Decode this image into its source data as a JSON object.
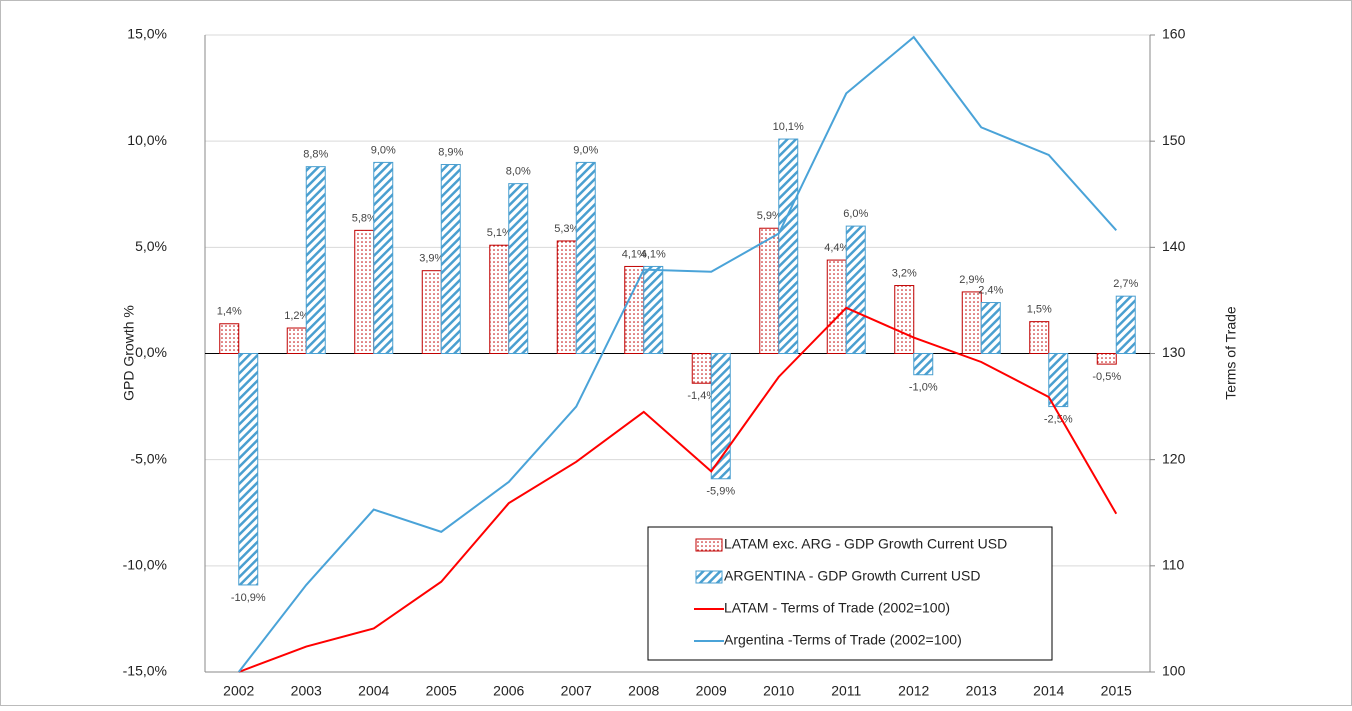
{
  "chart_data": {
    "type": "bar_line",
    "categories": [
      "2002",
      "2003",
      "2004",
      "2005",
      "2006",
      "2007",
      "2008",
      "2009",
      "2010",
      "2011",
      "2012",
      "2013",
      "2014",
      "2015"
    ],
    "ylabel": "GPD Growth %",
    "y2label": "Terms of Trade",
    "ylim": [
      -15,
      15
    ],
    "yticks": [
      {
        "value": -15,
        "label": "-15,0%"
      },
      {
        "value": -10,
        "label": "-10,0%"
      },
      {
        "value": -5,
        "label": "-5,0%"
      },
      {
        "value": 0,
        "label": "0,0%"
      },
      {
        "value": 5,
        "label": "5,0%"
      },
      {
        "value": 10,
        "label": "10,0%"
      },
      {
        "value": 15,
        "label": "15,0%"
      }
    ],
    "y2lim": [
      100,
      160
    ],
    "y2ticks": [
      100,
      110,
      120,
      130,
      140,
      150,
      160
    ],
    "grid": true,
    "legend": "lower right",
    "series": [
      {
        "name": "LATAM exc. ARG - GDP Growth Current USD",
        "type": "bar",
        "color": "#c00000",
        "values": [
          1.4,
          1.2,
          5.8,
          3.9,
          5.1,
          5.3,
          4.1,
          -1.4,
          5.9,
          4.4,
          3.2,
          2.9,
          1.5,
          -0.5
        ],
        "value_labels": [
          "1,4%",
          "1,2%",
          "5,8%",
          "3,9%",
          "5,1%",
          "5,3%",
          "4,1%",
          "-1,4%",
          "5,9%",
          "4,4%",
          "3,2%",
          "2,9%",
          "1,5%",
          "-0,5%"
        ]
      },
      {
        "name": "ARGENTINA - GDP Growth Current USD",
        "type": "bar",
        "color": "#4a9fd0",
        "values": [
          -10.9,
          8.8,
          9.0,
          8.9,
          8.0,
          9.0,
          4.1,
          -5.9,
          10.1,
          6.0,
          -1.0,
          2.4,
          -2.5,
          2.7
        ],
        "value_labels": [
          "-10,9%",
          "8,8%",
          "9,0%",
          "8,9%",
          "8,0%",
          "9,0%",
          "4,1%",
          "-5,9%",
          "10,1%",
          "6,0%",
          "-1,0%",
          "2,4%",
          "-2,5%",
          "2,7%"
        ]
      },
      {
        "name": "LATAM - Terms of Trade (2002=100)",
        "type": "line",
        "axis": "y2",
        "color": "#ff0000",
        "values": [
          100,
          102.4,
          104.1,
          108.5,
          115.9,
          119.8,
          124.5,
          118.9,
          127.8,
          134.3,
          131.5,
          129.2,
          125.9,
          114.9
        ]
      },
      {
        "name": "Argentina -Terms of Trade (2002=100)",
        "type": "line",
        "axis": "y2",
        "color": "#4aa3d8",
        "values": [
          100,
          108.2,
          115.3,
          113.2,
          117.9,
          125,
          137.9,
          137.7,
          141.3,
          154.5,
          159.8,
          151.3,
          148.7,
          141.6
        ]
      }
    ]
  }
}
